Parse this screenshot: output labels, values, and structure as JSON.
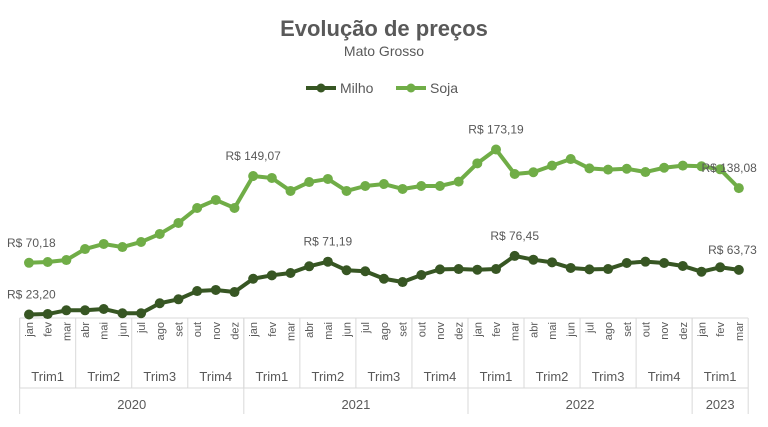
{
  "chart_data": {
    "type": "line",
    "title": "Evolução de preços",
    "subtitle": "Mato Grosso",
    "xlabel": "",
    "ylabel": "",
    "ylim": [
      0,
      180
    ],
    "grid": false,
    "legend_position": "top-center",
    "months": [
      "jan",
      "fev",
      "mar",
      "abr",
      "mai",
      "jun",
      "jul",
      "ago",
      "set",
      "out",
      "nov",
      "dez",
      "jan",
      "fev",
      "mar",
      "abr",
      "mai",
      "jun",
      "jul",
      "ago",
      "set",
      "out",
      "nov",
      "dez",
      "jan",
      "fev",
      "mar",
      "abr",
      "mai",
      "jun",
      "jul",
      "ago",
      "set",
      "out",
      "nov",
      "dez",
      "jan",
      "fev",
      "mar"
    ],
    "quarters": [
      {
        "label": "Trim1",
        "start": 0,
        "end": 2
      },
      {
        "label": "Trim2",
        "start": 3,
        "end": 5
      },
      {
        "label": "Trim3",
        "start": 6,
        "end": 8
      },
      {
        "label": "Trim4",
        "start": 9,
        "end": 11
      },
      {
        "label": "Trim1",
        "start": 12,
        "end": 14
      },
      {
        "label": "Trim2",
        "start": 15,
        "end": 17
      },
      {
        "label": "Trim3",
        "start": 18,
        "end": 20
      },
      {
        "label": "Trim4",
        "start": 21,
        "end": 23
      },
      {
        "label": "Trim1",
        "start": 24,
        "end": 26
      },
      {
        "label": "Trim2",
        "start": 27,
        "end": 29
      },
      {
        "label": "Trim3",
        "start": 30,
        "end": 32
      },
      {
        "label": "Trim4",
        "start": 33,
        "end": 35
      },
      {
        "label": "Trim1",
        "start": 36,
        "end": 38
      }
    ],
    "years": [
      {
        "label": "2020",
        "start": 0,
        "end": 11
      },
      {
        "label": "2021",
        "start": 12,
        "end": 23
      },
      {
        "label": "2022",
        "start": 24,
        "end": 35
      },
      {
        "label": "2023",
        "start": 36,
        "end": 38
      }
    ],
    "series": [
      {
        "name": "Milho",
        "color": "#375623",
        "values": [
          23.2,
          23.6,
          27,
          27,
          28.2,
          24.3,
          24.3,
          33.4,
          37,
          44.5,
          45.5,
          43.6,
          55.7,
          58.8,
          60.9,
          67,
          71.19,
          63.4,
          62.5,
          55.7,
          52.7,
          59.1,
          64.2,
          64.5,
          63.9,
          64.5,
          76.45,
          73,
          70.6,
          65.5,
          64.2,
          64.5,
          70,
          71.2,
          70,
          67.3,
          62.1,
          66.1,
          63.73
        ],
        "labels": [
          {
            "index": 0,
            "text": "R$ 23,20"
          },
          {
            "index": 16,
            "text": "R$ 71,19"
          },
          {
            "index": 26,
            "text": "R$ 76,45"
          },
          {
            "index": 38,
            "text": "R$ 63,73"
          }
        ]
      },
      {
        "name": "Soja",
        "color": "#70AD47",
        "values": [
          70.18,
          70.9,
          72.7,
          82.7,
          87.3,
          84.5,
          89.1,
          96.4,
          106.4,
          120,
          127.3,
          120,
          149.07,
          147.3,
          135.5,
          143.6,
          146.4,
          135.5,
          140,
          141.8,
          137.3,
          140,
          140,
          144,
          160.6,
          173.19,
          150.9,
          152.5,
          158.5,
          164.5,
          156,
          154.9,
          155.7,
          152.7,
          156.6,
          158.5,
          157.9,
          155.2,
          138.08
        ],
        "labels": [
          {
            "index": 0,
            "text": "R$ 70,18"
          },
          {
            "index": 12,
            "text": "R$ 149,07"
          },
          {
            "index": 25,
            "text": "R$ 173,19"
          },
          {
            "index": 38,
            "text": "R$ 138,08"
          }
        ]
      }
    ]
  }
}
